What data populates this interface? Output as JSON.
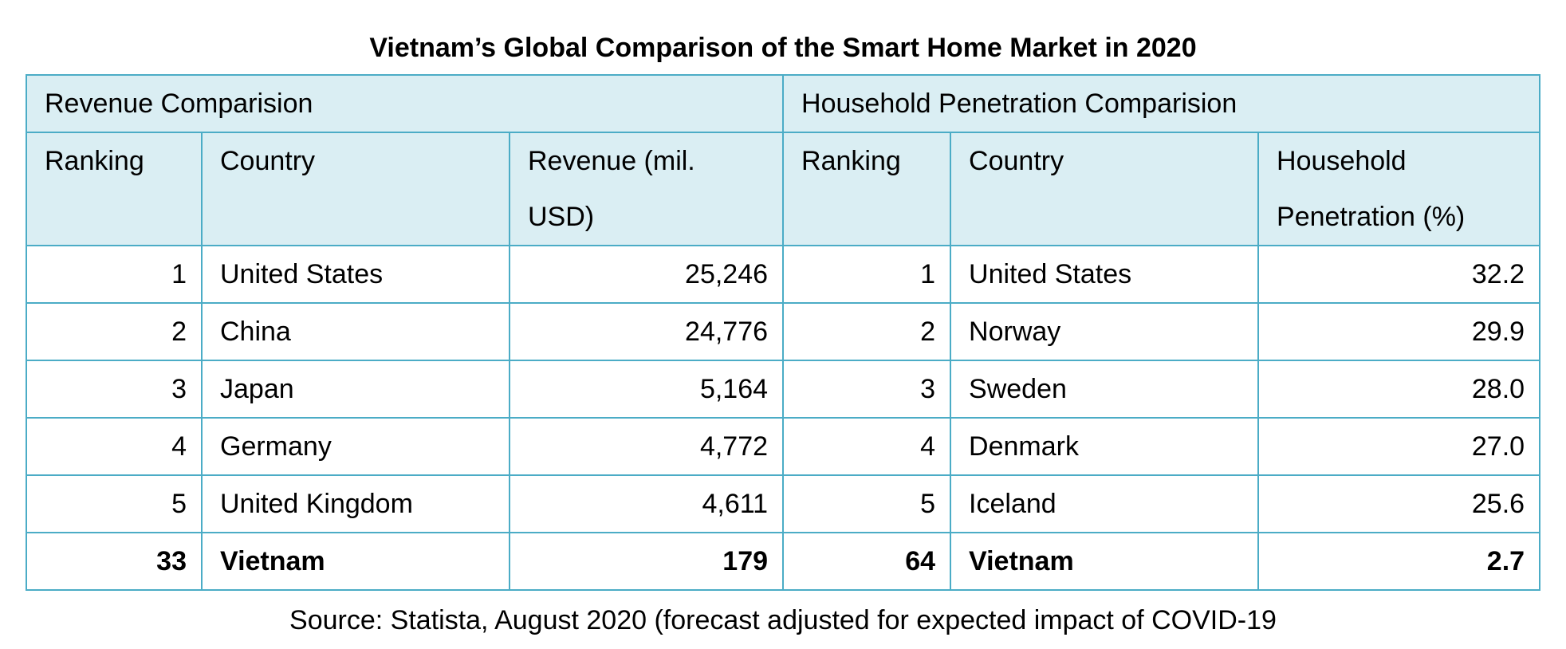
{
  "title": "Vietnam’s Global Comparison of the Smart Home Market in 2020",
  "groups": {
    "revenue": "Revenue Comparision",
    "penetration": "Household Penetration Comparision"
  },
  "headers": {
    "rev_ranking": "Ranking",
    "rev_country": "Country",
    "rev_value": "Revenue (mil. USD)",
    "pen_ranking": "Ranking",
    "pen_country": "Country",
    "pen_value": "Household Penetration (%)"
  },
  "rows": [
    {
      "rev_rank": "1",
      "rev_country": "United States",
      "revenue": "25,246",
      "pen_rank": "1",
      "pen_country": "United States",
      "penetration": "32.2"
    },
    {
      "rev_rank": "2",
      "rev_country": "China",
      "revenue": "24,776",
      "pen_rank": "2",
      "pen_country": "Norway",
      "penetration": "29.9"
    },
    {
      "rev_rank": "3",
      "rev_country": "Japan",
      "revenue": "5,164",
      "pen_rank": "3",
      "pen_country": "Sweden",
      "penetration": "28.0"
    },
    {
      "rev_rank": "4",
      "rev_country": "Germany",
      "revenue": "4,772",
      "pen_rank": "4",
      "pen_country": "Denmark",
      "penetration": "27.0"
    },
    {
      "rev_rank": "5",
      "rev_country": "United Kingdom",
      "revenue": "4,611",
      "pen_rank": "5",
      "pen_country": "Iceland",
      "penetration": "25.6"
    },
    {
      "rev_rank": "33",
      "rev_country": "Vietnam",
      "revenue": "179",
      "pen_rank": "64",
      "pen_country": "Vietnam",
      "penetration": "2.7"
    }
  ],
  "source": "Source: Statista, August 2020 (forecast adjusted for expected impact of COVID-19",
  "colors": {
    "header_fill": "#daeef3",
    "border": "#4bacc6"
  }
}
